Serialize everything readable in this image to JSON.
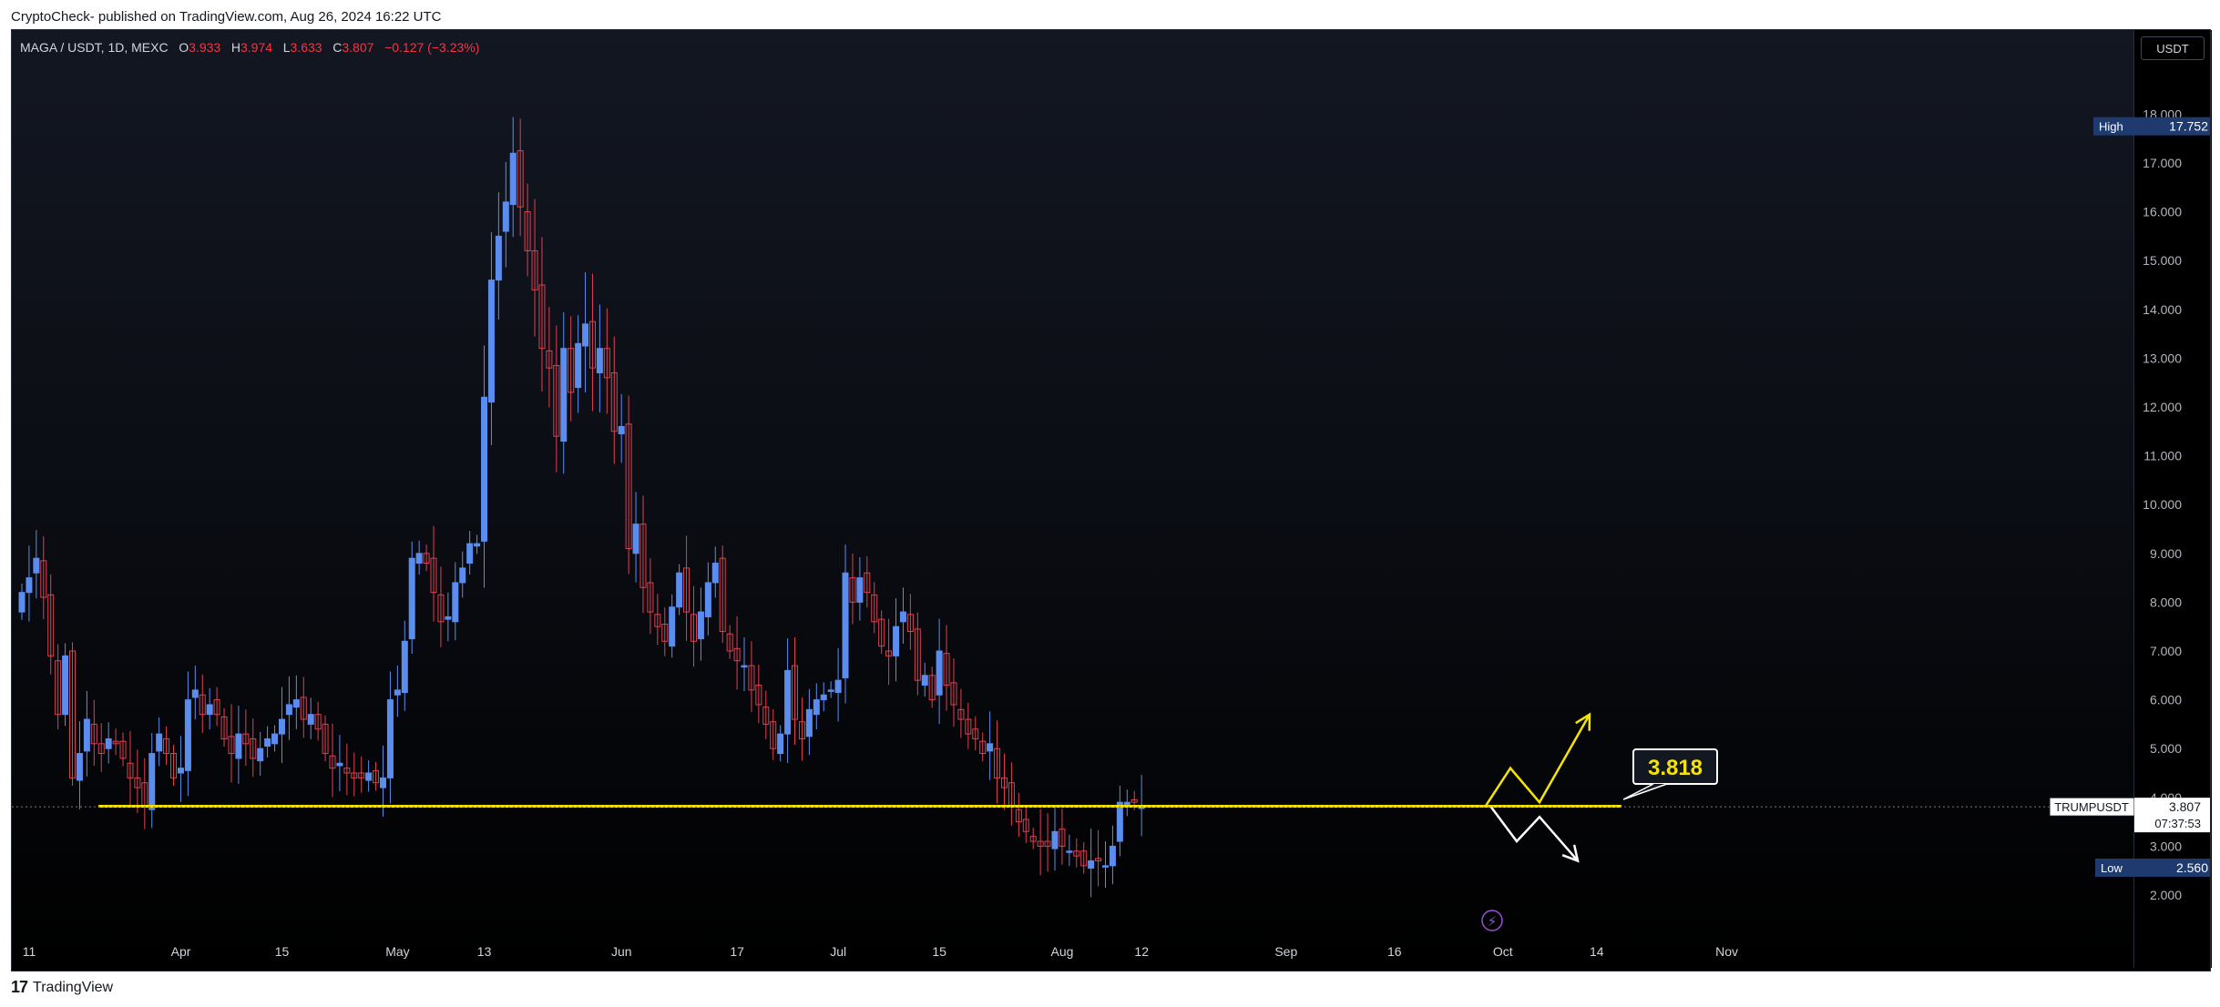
{
  "header": {
    "credit": "CryptoCheck- published on TradingView.com, Aug 26, 2024 16:22 UTC"
  },
  "legend": {
    "symbol": "MAGA / USDT, 1D, MEXC",
    "o_label": "O",
    "o": "3.933",
    "h_label": "H",
    "h": "3.974",
    "l_label": "L",
    "l": "3.633",
    "c_label": "C",
    "c": "3.807",
    "change": "−0.127 (−3.23%)"
  },
  "price_axis": {
    "currency": "USDT",
    "ticks": [
      "2.000",
      "3.000",
      "4.000",
      "5.000",
      "6.000",
      "7.000",
      "8.000",
      "9.000",
      "10.000",
      "11.000",
      "12.000",
      "13.000",
      "14.000",
      "15.000",
      "16.000",
      "17.000",
      "18.000"
    ],
    "high_label": "High",
    "high_value": "17.752",
    "low_label": "Low",
    "low_value": "2.560",
    "symbol_label": "TRUMPUSDT",
    "current_price": "3.807",
    "countdown": "07:37:53"
  },
  "time_axis": {
    "labels": [
      "11",
      "Apr",
      "15",
      "May",
      "13",
      "Jun",
      "17",
      "Jul",
      "15",
      "Aug",
      "12",
      "Sep",
      "16",
      "Oct",
      "14",
      "Nov"
    ]
  },
  "annotations": {
    "level_label": "3.818",
    "level_value": 3.818
  },
  "footer": {
    "brand": "TradingView",
    "logo_mark": "17"
  },
  "colors": {
    "up": "#5b8def",
    "down": "#e04050",
    "level": "#f5e400",
    "background": "#131722"
  },
  "chart_data": {
    "type": "candlestick",
    "symbol": "MAGA / USDT",
    "timeframe": "1D",
    "x_range": [
      "2024-03-11",
      "2024-11-01"
    ],
    "ylim": [
      1.0,
      18.5
    ],
    "high": 17.752,
    "low": 2.56,
    "last": 3.807,
    "support_level": 3.818,
    "projection_up": [
      3.8,
      4.6,
      3.9,
      5.7
    ],
    "projection_down": [
      3.8,
      3.1,
      3.6,
      2.7
    ],
    "closes": [
      8.2,
      8.5,
      8.9,
      8.1,
      6.9,
      5.7,
      6.9,
      4.4,
      4.9,
      5.6,
      5.1,
      4.9,
      5.2,
      5.1,
      4.8,
      4.4,
      4.2,
      3.8,
      4.9,
      5.3,
      4.9,
      4.4,
      4.6,
      6.0,
      6.2,
      5.7,
      5.9,
      5.7,
      5.2,
      4.9,
      5.3,
      5.1,
      4.8,
      5.0,
      5.2,
      5.3,
      5.6,
      5.9,
      6.0,
      5.6,
      5.7,
      5.4,
      4.9,
      4.6,
      4.7,
      4.5,
      4.4,
      4.4,
      4.5,
      4.3,
      4.4,
      6.0,
      6.2,
      7.2,
      8.9,
      9.0,
      8.8,
      8.2,
      7.6,
      7.7,
      8.4,
      8.7,
      9.2,
      9.2,
      12.2,
      14.6,
      15.5,
      16.2,
      17.2,
      16.1,
      15.2,
      14.4,
      13.2,
      12.8,
      11.4,
      13.2,
      12.3,
      13.3,
      13.7,
      12.8,
      13.2,
      12.6,
      11.5,
      11.6,
      9.1,
      9.6,
      8.3,
      7.8,
      7.5,
      7.2,
      7.9,
      8.6,
      7.8,
      7.2,
      7.8,
      8.4,
      8.8,
      7.4,
      7.0,
      6.8,
      6.7,
      6.2,
      5.9,
      5.5,
      5.0,
      5.3,
      6.6,
      5.6,
      5.2,
      5.8,
      6.0,
      6.1,
      6.2,
      6.4,
      8.6,
      8.0,
      8.5,
      8.2,
      7.6,
      7.1,
      6.9,
      7.5,
      7.8,
      7.4,
      6.4,
      6.5,
      6.0,
      7.0,
      6.3,
      5.9,
      5.6,
      5.3,
      5.2,
      4.9,
      5.1,
      4.4,
      4.2,
      3.8,
      3.5,
      3.3,
      3.1,
      3.0,
      3.0,
      3.3,
      3.0,
      2.9,
      2.8,
      2.6,
      2.7,
      2.7,
      2.6,
      3.0,
      3.9,
      3.9,
      3.9,
      3.8
    ]
  }
}
